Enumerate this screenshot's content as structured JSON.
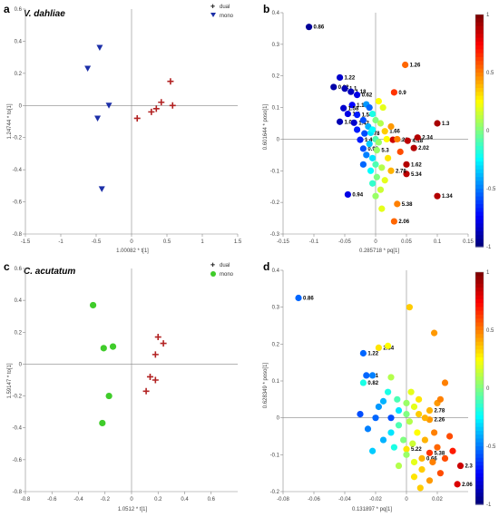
{
  "panels": [
    {
      "id": "a",
      "letter": "a",
      "title": "V. dahliae",
      "xlabel": "1.00082 * t[1]",
      "ylabel": "1.24744 * to[1]"
    },
    {
      "id": "b",
      "letter": "b",
      "title": "",
      "xlabel": "0.285718 * pq[1]",
      "ylabel": "0.601644 * poso[1]"
    },
    {
      "id": "c",
      "letter": "c",
      "title": "C. acutatum",
      "xlabel": "1.0512 * t[1]",
      "ylabel": "1.59147 * to[1]"
    },
    {
      "id": "d",
      "letter": "d",
      "title": "",
      "xlabel": "0.131897 * pq[1]",
      "ylabel": "0.628349 * poso[1]"
    }
  ],
  "colorbar_ticks": [
    "1",
    "0.5",
    "0",
    "-0.5",
    "-1"
  ],
  "colors": {
    "dual": "#b22222",
    "mono_a": "#1c2fa8",
    "mono_c": "#3fcc2a",
    "axis": "#888888"
  },
  "chart_data": [
    {
      "panel": "a",
      "type": "scatter",
      "xlim": [
        -1.5,
        1.5
      ],
      "ylim": [
        -0.8,
        0.6
      ],
      "xticks": [
        -1.5,
        -1,
        -0.5,
        0,
        0.5,
        1,
        1.5
      ],
      "yticks": [
        -0.8,
        -0.6,
        -0.4,
        -0.2,
        0,
        0.2,
        0.4,
        0.6
      ],
      "legend": [
        "dual",
        "mono"
      ],
      "legend_position": "top-right",
      "series": [
        {
          "name": "dual",
          "marker": "plus",
          "points": [
            [
              0.08,
              -0.08
            ],
            [
              0.28,
              -0.04
            ],
            [
              0.35,
              -0.02
            ],
            [
              0.42,
              0.02
            ],
            [
              0.55,
              0.15
            ],
            [
              0.58,
              0.0
            ]
          ]
        },
        {
          "name": "mono",
          "marker": "triangle-down",
          "points": [
            [
              -0.62,
              0.23
            ],
            [
              -0.45,
              0.36
            ],
            [
              -0.32,
              0.0
            ],
            [
              -0.48,
              -0.08
            ],
            [
              -0.42,
              -0.52
            ]
          ]
        }
      ]
    },
    {
      "panel": "b",
      "type": "scatter",
      "xlim": [
        -0.15,
        0.15
      ],
      "ylim": [
        -0.3,
        0.4
      ],
      "xticks": [
        -0.15,
        -0.1,
        -0.05,
        0,
        0.05,
        0.1,
        0.15
      ],
      "yticks": [
        -0.3,
        -0.2,
        -0.1,
        0,
        0.1,
        0.2,
        0.3,
        0.4
      ],
      "colorscale": "jet",
      "color_range": [
        -1,
        1
      ],
      "points": [
        [
          -0.108,
          0.355,
          -0.95,
          "0.86"
        ],
        [
          -0.058,
          0.195,
          -0.85,
          "1.22"
        ],
        [
          0.048,
          0.235,
          0.55,
          "1.26"
        ],
        [
          -0.068,
          0.165,
          -0.92,
          "0.82"
        ],
        [
          -0.05,
          0.16,
          -0.9,
          "1.1"
        ],
        [
          -0.04,
          0.15,
          -0.88,
          "1.18"
        ],
        [
          -0.03,
          0.14,
          -0.8,
          "0.62"
        ],
        [
          0.03,
          0.148,
          0.65,
          "0.9"
        ],
        [
          -0.038,
          0.108,
          -0.75,
          "1.14"
        ],
        [
          -0.052,
          0.098,
          -0.85,
          "1.58"
        ],
        [
          -0.045,
          0.08,
          -0.8,
          "1.3"
        ],
        [
          -0.03,
          0.077,
          -0.7,
          "1.54"
        ],
        [
          -0.058,
          0.055,
          -0.9,
          "1.06"
        ],
        [
          -0.035,
          0.052,
          -0.85,
          "1.42"
        ],
        [
          -0.018,
          0.018,
          -0.6,
          "0.78"
        ],
        [
          0.015,
          0.025,
          0.35,
          "1.66"
        ],
        [
          0.1,
          0.05,
          0.92,
          "1.3"
        ],
        [
          -0.025,
          -0.002,
          -0.7,
          "1.46"
        ],
        [
          0.028,
          -0.002,
          0.85,
          "5.26"
        ],
        [
          0.052,
          -0.005,
          0.88,
          "4.18"
        ],
        [
          0.068,
          0.005,
          0.9,
          "2.34"
        ],
        [
          -0.02,
          -0.03,
          -0.6,
          "0.98"
        ],
        [
          0.002,
          -0.035,
          0.05,
          "5.3"
        ],
        [
          0.062,
          -0.028,
          0.9,
          "2.02"
        ],
        [
          0.05,
          -0.08,
          0.9,
          "1.62"
        ],
        [
          0.05,
          -0.11,
          0.88,
          "5.34"
        ],
        [
          0.025,
          -0.1,
          0.4,
          "2.78"
        ],
        [
          -0.045,
          -0.175,
          -0.8,
          "0.94"
        ],
        [
          0.035,
          -0.205,
          0.5,
          "5.38"
        ],
        [
          0.1,
          -0.18,
          0.9,
          "1.34"
        ],
        [
          0.03,
          -0.26,
          0.55,
          "2.06"
        ],
        [
          -0.02,
          0.06,
          -0.6,
          ""
        ],
        [
          -0.012,
          0.04,
          -0.4,
          ""
        ],
        [
          -0.005,
          0.08,
          -0.2,
          ""
        ],
        [
          0.0,
          0.06,
          0.0,
          ""
        ],
        [
          0.008,
          0.05,
          0.1,
          ""
        ],
        [
          -0.008,
          0.02,
          -0.3,
          ""
        ],
        [
          0.0,
          0.0,
          -0.1,
          ""
        ],
        [
          0.005,
          -0.01,
          0.05,
          ""
        ],
        [
          -0.01,
          -0.015,
          -0.35,
          ""
        ],
        [
          -0.015,
          -0.05,
          -0.5,
          ""
        ],
        [
          -0.005,
          -0.06,
          -0.3,
          ""
        ],
        [
          0.0,
          -0.08,
          -0.1,
          ""
        ],
        [
          -0.008,
          -0.1,
          -0.25,
          ""
        ],
        [
          0.002,
          -0.12,
          0.0,
          ""
        ],
        [
          -0.005,
          -0.14,
          -0.15,
          ""
        ],
        [
          0.008,
          -0.16,
          0.15,
          ""
        ],
        [
          0.0,
          -0.18,
          0.05,
          ""
        ],
        [
          0.015,
          -0.13,
          0.2,
          ""
        ],
        [
          0.02,
          -0.06,
          0.3,
          ""
        ],
        [
          0.018,
          0.0,
          0.25,
          ""
        ],
        [
          0.012,
          0.1,
          0.2,
          ""
        ],
        [
          0.005,
          0.12,
          0.25,
          ""
        ],
        [
          -0.015,
          0.11,
          -0.45,
          ""
        ],
        [
          0.01,
          -0.22,
          0.2,
          ""
        ],
        [
          0.025,
          0.04,
          0.45,
          ""
        ],
        [
          -0.03,
          0.03,
          -0.7,
          ""
        ],
        [
          -0.02,
          -0.08,
          -0.55,
          ""
        ],
        [
          0.01,
          -0.09,
          0.1,
          ""
        ],
        [
          -0.01,
          0.1,
          -0.55,
          ""
        ],
        [
          0.035,
          0.0,
          0.5,
          ""
        ],
        [
          0.04,
          -0.04,
          0.6,
          ""
        ],
        [
          -0.005,
          0.03,
          -0.25,
          ""
        ]
      ]
    },
    {
      "panel": "c",
      "type": "scatter",
      "xlim": [
        -0.8,
        0.8
      ],
      "ylim": [
        -0.8,
        0.6
      ],
      "xticks": [
        -0.8,
        -0.6,
        -0.4,
        -0.2,
        0,
        0.2,
        0.4,
        0.6
      ],
      "yticks": [
        -0.8,
        -0.6,
        -0.4,
        -0.2,
        0,
        0.2,
        0.4,
        0.6
      ],
      "legend": [
        "dual",
        "mono"
      ],
      "legend_position": "top-right",
      "series": [
        {
          "name": "dual",
          "marker": "plus",
          "points": [
            [
              0.2,
              0.17
            ],
            [
              0.24,
              0.13
            ],
            [
              0.18,
              0.06
            ],
            [
              0.14,
              -0.08
            ],
            [
              0.18,
              -0.1
            ],
            [
              0.11,
              -0.17
            ]
          ]
        },
        {
          "name": "mono",
          "marker": "circle",
          "points": [
            [
              -0.29,
              0.37
            ],
            [
              -0.14,
              0.11
            ],
            [
              -0.21,
              0.1
            ],
            [
              -0.17,
              -0.2
            ],
            [
              -0.22,
              -0.37
            ]
          ]
        }
      ]
    },
    {
      "panel": "d",
      "type": "scatter",
      "xlim": [
        -0.08,
        0.04
      ],
      "ylim": [
        -0.2,
        0.4
      ],
      "xticks": [
        -0.08,
        -0.06,
        -0.04,
        -0.02,
        0,
        0.02
      ],
      "yticks": [
        -0.2,
        -0.1,
        0,
        0.1,
        0.2,
        0.3,
        0.4
      ],
      "colorscale": "jet",
      "color_range": [
        -1,
        1
      ],
      "points": [
        [
          -0.07,
          0.325,
          -0.55,
          "0.86"
        ],
        [
          -0.028,
          0.175,
          -0.55,
          "1.22"
        ],
        [
          -0.018,
          0.19,
          0.3,
          "2.34"
        ],
        [
          -0.012,
          0.195,
          0.25,
          ""
        ],
        [
          0.002,
          0.3,
          0.35,
          ""
        ],
        [
          0.018,
          0.23,
          0.45,
          ""
        ],
        [
          -0.026,
          0.115,
          -0.55,
          "1.1"
        ],
        [
          -0.028,
          0.095,
          -0.2,
          "0.82"
        ],
        [
          -0.022,
          0.115,
          -0.5,
          ""
        ],
        [
          -0.01,
          0.11,
          0.1,
          ""
        ],
        [
          -0.015,
          0.045,
          -0.4,
          ""
        ],
        [
          0.015,
          0.02,
          0.4,
          "2.78"
        ],
        [
          0.015,
          -0.005,
          0.45,
          "2.26"
        ],
        [
          0.025,
          0.095,
          0.5,
          ""
        ],
        [
          0.02,
          0.04,
          0.45,
          ""
        ],
        [
          0.022,
          0.05,
          0.5,
          ""
        ],
        [
          0.0,
          -0.085,
          0.3,
          "5.22"
        ],
        [
          0.015,
          -0.095,
          0.65,
          "5.38"
        ],
        [
          0.01,
          -0.11,
          0.4,
          "0.66"
        ],
        [
          0.035,
          -0.13,
          0.85,
          "2.3"
        ],
        [
          0.033,
          -0.18,
          0.82,
          "2.06"
        ],
        [
          -0.01,
          0.0,
          -0.6,
          ""
        ],
        [
          -0.005,
          0.02,
          -0.3,
          ""
        ],
        [
          0.0,
          0.04,
          0.05,
          ""
        ],
        [
          0.005,
          0.03,
          0.2,
          ""
        ],
        [
          0.008,
          0.01,
          0.35,
          ""
        ],
        [
          0.002,
          -0.01,
          0.1,
          ""
        ],
        [
          -0.005,
          -0.02,
          -0.1,
          ""
        ],
        [
          -0.01,
          -0.04,
          -0.3,
          ""
        ],
        [
          -0.015,
          -0.06,
          -0.4,
          ""
        ],
        [
          -0.008,
          -0.08,
          -0.2,
          ""
        ],
        [
          0.0,
          -0.1,
          0.05,
          ""
        ],
        [
          0.005,
          -0.12,
          0.2,
          ""
        ],
        [
          0.01,
          -0.14,
          0.35,
          ""
        ],
        [
          -0.005,
          -0.13,
          0.1,
          ""
        ],
        [
          0.012,
          -0.06,
          0.4,
          ""
        ],
        [
          0.018,
          -0.04,
          0.5,
          ""
        ],
        [
          0.02,
          -0.08,
          0.55,
          ""
        ],
        [
          0.025,
          -0.11,
          0.6,
          ""
        ],
        [
          0.015,
          -0.17,
          0.45,
          ""
        ],
        [
          0.005,
          -0.16,
          0.3,
          ""
        ],
        [
          -0.02,
          0.0,
          -0.55,
          ""
        ],
        [
          -0.025,
          -0.03,
          -0.5,
          ""
        ],
        [
          -0.018,
          0.03,
          -0.45,
          ""
        ],
        [
          -0.03,
          0.01,
          -0.6,
          ""
        ],
        [
          -0.012,
          0.07,
          -0.2,
          ""
        ],
        [
          0.003,
          0.07,
          0.2,
          ""
        ],
        [
          0.008,
          0.05,
          0.3,
          ""
        ],
        [
          0.012,
          0.0,
          0.4,
          ""
        ],
        [
          0.028,
          -0.05,
          0.6,
          ""
        ],
        [
          0.03,
          -0.09,
          0.7,
          ""
        ],
        [
          -0.002,
          -0.06,
          0.0,
          ""
        ],
        [
          0.007,
          -0.04,
          0.25,
          ""
        ],
        [
          -0.022,
          -0.09,
          -0.35,
          ""
        ],
        [
          0.017,
          -0.12,
          0.5,
          ""
        ],
        [
          0.022,
          -0.15,
          0.6,
          ""
        ],
        [
          0.009,
          -0.19,
          0.35,
          ""
        ],
        [
          -0.006,
          0.05,
          -0.1,
          ""
        ],
        [
          0.0,
          0.01,
          0.0,
          ""
        ],
        [
          0.004,
          -0.07,
          0.15,
          ""
        ]
      ]
    }
  ]
}
